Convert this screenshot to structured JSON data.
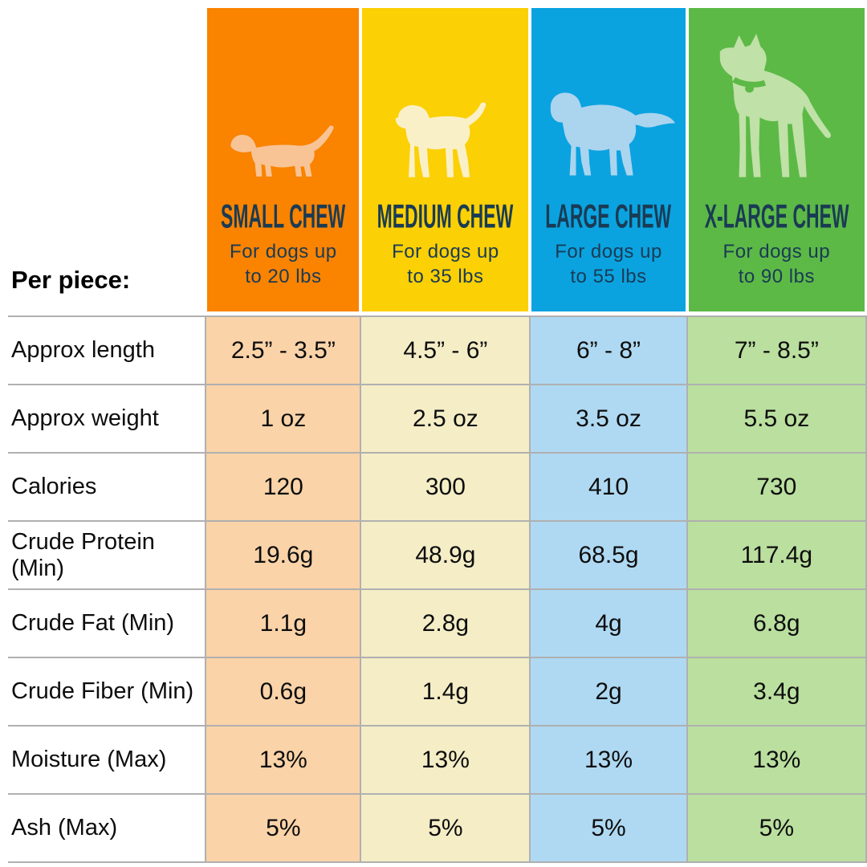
{
  "table": {
    "corner_label": "Per piece:",
    "grid_color": "#b0b0b0",
    "header_text_color": "#1a3b54",
    "body_text_color": "#0d0d0d",
    "columns": [
      {
        "id": "small",
        "title": "SMALL CHEW",
        "subtitle": [
          "For dogs up",
          "to 20 lbs"
        ],
        "dog": "dachshund",
        "dog_icon": "dachshund-icon",
        "header_color": "#fa8300",
        "cell_color": "#fad3a8",
        "dog_color": "#f8c496"
      },
      {
        "id": "medium",
        "title": "MEDIUM CHEW",
        "subtitle": [
          "For dogs up",
          "to 35 lbs"
        ],
        "dog": "beagle",
        "dog_icon": "beagle-icon",
        "header_color": "#fbd004",
        "cell_color": "#f4edc6",
        "dog_color": "#faf0c8"
      },
      {
        "id": "large",
        "title": "LARGE CHEW",
        "subtitle": [
          "For dogs up",
          "to 55 lbs"
        ],
        "dog": "retriever",
        "dog_icon": "golden-retriever-icon",
        "header_color": "#0aa3e0",
        "cell_color": "#afd9f2",
        "dog_color": "#abd4ef"
      },
      {
        "id": "xlarge",
        "title": "X-LARGE CHEW",
        "subtitle": [
          "For dogs up",
          "to 90 lbs"
        ],
        "dog": "great-dane",
        "dog_icon": "great-dane-icon",
        "header_color": "#5cb946",
        "cell_color": "#badf9f",
        "dog_color": "#c0e1a8"
      }
    ],
    "rows": [
      {
        "label": "Approx length",
        "values": [
          "2.5” - 3.5”",
          "4.5” - 6”",
          "6” - 8”",
          "7” - 8.5”"
        ]
      },
      {
        "label": "Approx weight",
        "values": [
          "1 oz",
          "2.5 oz",
          "3.5 oz",
          "5.5 oz"
        ]
      },
      {
        "label": "Calories",
        "values": [
          "120",
          "300",
          "410",
          "730"
        ]
      },
      {
        "label": "Crude Protein (Min)",
        "values": [
          "19.6g",
          "48.9g",
          "68.5g",
          "117.4g"
        ]
      },
      {
        "label": "Crude Fat (Min)",
        "values": [
          "1.1g",
          "2.8g",
          "4g",
          "6.8g"
        ]
      },
      {
        "label": "Crude Fiber (Min)",
        "values": [
          "0.6g",
          "1.4g",
          "2g",
          "3.4g"
        ]
      },
      {
        "label": "Moisture (Max)",
        "values": [
          "13%",
          "13%",
          "13%",
          "13%"
        ]
      },
      {
        "label": "Ash (Max)",
        "values": [
          "5%",
          "5%",
          "5%",
          "5%"
        ]
      }
    ]
  },
  "chart_data": {
    "type": "table",
    "title": "Per piece:",
    "columns": [
      "SMALL CHEW — For dogs up to 20 lbs",
      "MEDIUM CHEW — For dogs up to 35 lbs",
      "LARGE CHEW — For dogs up to 55 lbs",
      "X-LARGE CHEW — For dogs up to 90 lbs"
    ],
    "row_labels": [
      "Approx length",
      "Approx weight",
      "Calories",
      "Crude Protein (Min)",
      "Crude Fat (Min)",
      "Crude Fiber (Min)",
      "Moisture (Max)",
      "Ash (Max)"
    ],
    "cells": [
      [
        "2.5” - 3.5”",
        "4.5” - 6”",
        "6” - 8”",
        "7” - 8.5”"
      ],
      [
        "1 oz",
        "2.5 oz",
        "3.5 oz",
        "5.5 oz"
      ],
      [
        "120",
        "300",
        "410",
        "730"
      ],
      [
        "19.6g",
        "48.9g",
        "68.5g",
        "117.4g"
      ],
      [
        "1.1g",
        "2.8g",
        "4g",
        "6.8g"
      ],
      [
        "0.6g",
        "1.4g",
        "2g",
        "3.4g"
      ],
      [
        "13%",
        "13%",
        "13%",
        "13%"
      ],
      [
        "5%",
        "5%",
        "5%",
        "5%"
      ]
    ]
  }
}
